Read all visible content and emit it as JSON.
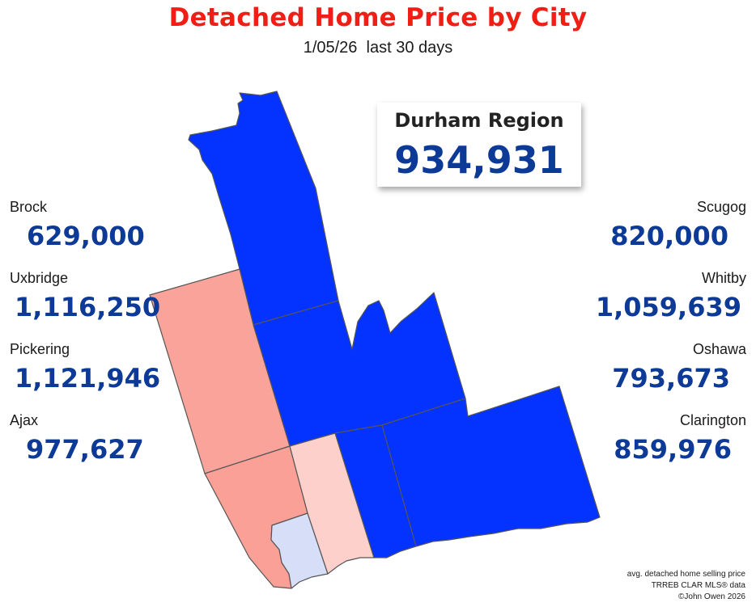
{
  "title": "Detached Home Price by City",
  "subtitle": "1/05/26  last 30 days",
  "region": {
    "name": "Durham Region",
    "value": "934,931"
  },
  "colors": {
    "title": "#f01e14",
    "value_text": "#0c3a96",
    "blue_strong": "#0433ff",
    "red_mid": "#f9a39a",
    "red_light": "#fdd0cc",
    "blue_light": "#d6def8"
  },
  "cities": {
    "brock": {
      "name": "Brock",
      "value": "629,000",
      "fill": "#0433ff"
    },
    "uxbridge": {
      "name": "Uxbridge",
      "value": "1,116,250",
      "fill": "#f9a39a"
    },
    "pickering": {
      "name": "Pickering",
      "value": "1,121,946",
      "fill": "#fba097"
    },
    "ajax": {
      "name": "Ajax",
      "value": "977,627",
      "fill": "#d6def8"
    },
    "scugog": {
      "name": "Scugog",
      "value": "820,000",
      "fill": "#0433ff"
    },
    "whitby": {
      "name": "Whitby",
      "value": "1,059,639",
      "fill": "#fdd0cc"
    },
    "oshawa": {
      "name": "Oshawa",
      "value": "793,673",
      "fill": "#0433ff"
    },
    "clarington": {
      "name": "Clarington",
      "value": "859,976",
      "fill": "#0433ff"
    }
  },
  "source": {
    "line1": "avg. detached home selling price",
    "line2": "TRREB CLAR MLS® data",
    "line3": "©John Owen 2026"
  }
}
